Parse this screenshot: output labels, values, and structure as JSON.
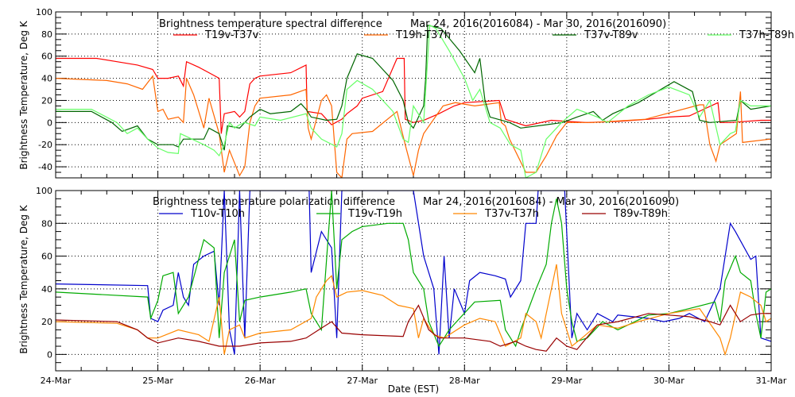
{
  "chart_data": [
    {
      "type": "line",
      "title": "Brightness temperature spectral difference",
      "date_range": "Mar 24, 2016(2016084) - Mar 30, 2016(2016090)",
      "xlabel": "",
      "ylabel": "Brightness Temperature, Deg K",
      "xlim": [
        0,
        7
      ],
      "ylim": [
        -50,
        100
      ],
      "yticks": [
        -40,
        -20,
        0,
        20,
        40,
        60,
        80,
        100
      ],
      "grid": true,
      "legend_position": "top",
      "series": [
        {
          "name": "T19v-T37v",
          "color": "#ff0000",
          "x": [
            0,
            0.4,
            0.6,
            0.8,
            0.95,
            1.0,
            1.1,
            1.2,
            1.25,
            1.28,
            1.4,
            1.5,
            1.6,
            1.62,
            1.65,
            1.75,
            1.8,
            1.85,
            1.9,
            1.95,
            2.0,
            2.3,
            2.45,
            2.46,
            2.6,
            2.7,
            2.8,
            2.85,
            2.95,
            3.0,
            3.2,
            3.34,
            3.41,
            3.42,
            3.5,
            3.6,
            3.75,
            3.9,
            4.0,
            4.34,
            4.4,
            4.6,
            4.85,
            5.0,
            5.2,
            5.5,
            5.8,
            6.0,
            6.2,
            6.48,
            6.5,
            6.6,
            6.9,
            7.0
          ],
          "y": [
            58,
            58,
            55,
            52,
            48,
            40,
            40,
            42,
            33,
            55,
            50,
            45,
            40,
            -10,
            8,
            10,
            5,
            10,
            35,
            40,
            42,
            45,
            52,
            10,
            8,
            -2,
            3,
            8,
            15,
            22,
            28,
            58,
            58,
            3,
            0,
            2,
            8,
            15,
            18,
            20,
            3,
            -3,
            2,
            1,
            0,
            1,
            3,
            5,
            6,
            18,
            0,
            0,
            2,
            2
          ]
        },
        {
          "name": "T19h-T37h",
          "color": "#ff6600",
          "x": [
            0,
            0.5,
            0.7,
            0.85,
            0.95,
            1.0,
            1.05,
            1.1,
            1.2,
            1.25,
            1.28,
            1.35,
            1.45,
            1.5,
            1.6,
            1.65,
            1.7,
            1.8,
            1.85,
            1.9,
            1.95,
            2.0,
            2.3,
            2.45,
            2.47,
            2.5,
            2.6,
            2.65,
            2.7,
            2.75,
            2.8,
            2.85,
            2.9,
            3.1,
            3.34,
            3.42,
            3.5,
            3.55,
            3.6,
            3.79,
            3.91,
            4.1,
            4.34,
            4.36,
            4.4,
            4.44,
            4.6,
            4.7,
            4.8,
            4.9,
            5.0,
            5.25,
            5.77,
            6.3,
            6.34,
            6.4,
            6.46,
            6.5,
            6.66,
            6.7,
            6.72,
            6.99
          ],
          "y": [
            40,
            38,
            35,
            30,
            42,
            10,
            12,
            3,
            5,
            0,
            40,
            25,
            -5,
            22,
            -10,
            -45,
            -25,
            -48,
            -40,
            0,
            15,
            22,
            25,
            30,
            -5,
            -15,
            20,
            25,
            15,
            -45,
            -50,
            -15,
            -10,
            -8,
            10,
            -20,
            -48,
            -25,
            -10,
            15,
            18,
            15,
            18,
            0,
            -3,
            -15,
            -45,
            -45,
            -30,
            -12,
            0,
            0,
            3,
            16,
            16,
            -20,
            -35,
            -20,
            -10,
            28,
            -18,
            -15
          ]
        },
        {
          "name": "T37v-T89v",
          "color": "#006600",
          "x": [
            0,
            0.35,
            0.55,
            0.65,
            0.8,
            0.9,
            1.0,
            1.15,
            1.2,
            1.25,
            1.45,
            1.5,
            1.6,
            1.65,
            1.68,
            1.8,
            1.9,
            2.0,
            2.1,
            2.3,
            2.4,
            2.45,
            2.5,
            2.65,
            2.75,
            2.8,
            2.85,
            2.95,
            3.1,
            3.3,
            3.4,
            3.45,
            3.5,
            3.6,
            3.62,
            3.64,
            3.77,
            3.95,
            4.1,
            4.15,
            4.2,
            4.25,
            4.44,
            4.55,
            4.8,
            4.96,
            5.1,
            5.26,
            5.35,
            5.45,
            5.7,
            6.05,
            6.23,
            6.3,
            6.4,
            6.66,
            6.7,
            6.8,
            7.0
          ],
          "y": [
            10,
            10,
            0,
            -8,
            -3,
            -15,
            -20,
            -20,
            -22,
            -15,
            -15,
            -5,
            -10,
            -25,
            -3,
            -5,
            5,
            12,
            8,
            10,
            17,
            12,
            5,
            2,
            3,
            15,
            40,
            62,
            58,
            38,
            20,
            0,
            -5,
            15,
            40,
            88,
            85,
            65,
            45,
            58,
            20,
            5,
            0,
            -5,
            -2,
            0,
            5,
            10,
            2,
            8,
            18,
            37,
            28,
            2,
            0,
            2,
            20,
            12,
            15
          ]
        },
        {
          "name": "T37h-T89h",
          "color": "#66ff66",
          "x": [
            0,
            0.35,
            0.6,
            0.7,
            0.8,
            0.9,
            1.0,
            1.1,
            1.2,
            1.22,
            1.45,
            1.55,
            1.6,
            1.65,
            1.7,
            1.75,
            1.8,
            1.85,
            1.95,
            2.0,
            2.2,
            2.45,
            2.5,
            2.6,
            2.75,
            2.8,
            2.85,
            2.95,
            3.1,
            3.3,
            3.4,
            3.45,
            3.5,
            3.6,
            3.66,
            3.72,
            3.85,
            4.0,
            4.08,
            4.15,
            4.25,
            4.35,
            4.45,
            4.55,
            4.6,
            4.7,
            4.8,
            4.85,
            4.95,
            5.1,
            5.3,
            5.4,
            5.6,
            5.8,
            6.0,
            6.2,
            6.3,
            6.4,
            6.5,
            6.6,
            6.65,
            6.7,
            6.8,
            7.0
          ],
          "y": [
            12,
            12,
            0,
            -10,
            -5,
            -15,
            -23,
            -27,
            -28,
            -10,
            -20,
            -25,
            -30,
            -20,
            0,
            -5,
            -2,
            0,
            -3,
            5,
            2,
            8,
            -5,
            -15,
            -22,
            -10,
            30,
            38,
            30,
            10,
            -15,
            -18,
            15,
            0,
            88,
            85,
            65,
            40,
            20,
            30,
            0,
            -5,
            -20,
            -25,
            -50,
            -45,
            -15,
            -10,
            0,
            12,
            5,
            0,
            15,
            25,
            32,
            25,
            5,
            20,
            -20,
            -10,
            -8,
            20,
            15,
            15
          ]
        }
      ],
      "x_tick_labels": []
    },
    {
      "type": "line",
      "title": "Brightness temperature polarization difference",
      "date_range": "Mar 24, 2016(2016084) - Mar 30, 2016(2016090)",
      "xlabel": "Date (EST)",
      "ylabel": "Brightness Temperature, Deg K",
      "xlim": [
        0,
        7
      ],
      "ylim": [
        -10,
        100
      ],
      "yticks": [
        0,
        20,
        40,
        60,
        80,
        100
      ],
      "x_tick_labels": [
        "24-Mar",
        "25-Mar",
        "26-Mar",
        "27-Mar",
        "28-Mar",
        "29-Mar",
        "30-Mar",
        "31-Mar"
      ],
      "grid": true,
      "legend_position": "top",
      "series": [
        {
          "name": "T10v-T10h",
          "color": "#0000cc",
          "x": [
            0,
            0.9,
            0.93,
            1.0,
            1.05,
            1.15,
            1.2,
            1.25,
            1.3,
            1.35,
            1.45,
            1.55,
            1.6,
            1.65,
            1.7,
            1.75,
            1.8,
            1.85,
            1.9,
            2.48,
            2.5,
            2.6,
            2.7,
            2.75,
            2.8,
            3.5,
            3.6,
            3.7,
            3.75,
            3.8,
            3.85,
            3.9,
            4.0,
            4.05,
            4.15,
            4.3,
            4.4,
            4.45,
            4.55,
            4.6,
            4.7,
            4.72,
            4.98,
            5.05,
            5.1,
            5.2,
            5.3,
            5.45,
            5.5,
            5.8,
            5.95,
            6.1,
            6.2,
            6.35,
            6.5,
            6.6,
            6.65,
            6.8,
            6.85,
            6.9,
            7.0
          ],
          "y": [
            43,
            42,
            22,
            20,
            27,
            30,
            50,
            35,
            30,
            55,
            60,
            63,
            30,
            100,
            15,
            0,
            100,
            10,
            100,
            100,
            50,
            75,
            65,
            10,
            100,
            100,
            60,
            40,
            0,
            60,
            10,
            40,
            25,
            45,
            50,
            48,
            46,
            35,
            45,
            80,
            80,
            100,
            100,
            10,
            25,
            15,
            25,
            20,
            24,
            22,
            20,
            22,
            25,
            20,
            40,
            80,
            75,
            58,
            60,
            10,
            8
          ]
        },
        {
          "name": "T19v-T19h",
          "color": "#00aa00",
          "x": [
            0,
            0.9,
            0.93,
            1.0,
            1.05,
            1.15,
            1.2,
            1.3,
            1.45,
            1.55,
            1.6,
            1.65,
            1.7,
            1.75,
            1.8,
            1.85,
            2.0,
            2.3,
            2.45,
            2.5,
            2.6,
            2.7,
            2.75,
            2.8,
            2.9,
            3.0,
            3.25,
            3.4,
            3.45,
            3.5,
            3.6,
            3.65,
            3.75,
            3.8,
            3.85,
            4.1,
            4.35,
            4.4,
            4.5,
            4.55,
            4.7,
            4.8,
            4.85,
            4.9,
            4.95,
            5.0,
            5.05,
            5.1,
            5.2,
            5.35,
            5.5,
            5.8,
            6.0,
            6.2,
            6.45,
            6.5,
            6.55,
            6.65,
            6.7,
            6.8,
            6.85,
            6.9,
            6.95,
            7.0
          ],
          "y": [
            38,
            35,
            22,
            33,
            48,
            50,
            25,
            35,
            70,
            65,
            10,
            50,
            60,
            70,
            20,
            33,
            35,
            38,
            40,
            25,
            15,
            100,
            40,
            70,
            75,
            78,
            80,
            80,
            70,
            50,
            40,
            20,
            5,
            10,
            15,
            32,
            33,
            15,
            5,
            15,
            40,
            55,
            80,
            95,
            80,
            40,
            20,
            8,
            10,
            20,
            15,
            24,
            25,
            28,
            32,
            20,
            45,
            60,
            50,
            45,
            25,
            10,
            38,
            40
          ]
        },
        {
          "name": "T37v-T37h",
          "color": "#ff8800",
          "x": [
            0,
            0.6,
            0.7,
            0.8,
            0.9,
            1.0,
            1.2,
            1.4,
            1.5,
            1.6,
            1.65,
            1.7,
            1.8,
            1.85,
            2.0,
            2.3,
            2.5,
            2.55,
            2.65,
            2.7,
            2.75,
            2.85,
            3.0,
            3.2,
            3.35,
            3.5,
            3.55,
            3.6,
            3.7,
            3.8,
            4.0,
            4.15,
            4.3,
            4.4,
            4.55,
            4.6,
            4.7,
            4.75,
            4.85,
            4.9,
            4.95,
            5.05,
            5.15,
            5.3,
            5.5,
            5.7,
            6.0,
            6.3,
            6.5,
            6.55,
            6.6,
            6.7,
            6.8,
            6.9,
            6.95,
            7.0
          ],
          "y": [
            20,
            19,
            17,
            15,
            10,
            10,
            15,
            12,
            8,
            35,
            0,
            15,
            18,
            10,
            13,
            15,
            22,
            35,
            45,
            48,
            35,
            38,
            39,
            36,
            30,
            28,
            10,
            22,
            12,
            10,
            18,
            22,
            20,
            5,
            10,
            25,
            20,
            10,
            40,
            55,
            25,
            5,
            10,
            18,
            16,
            20,
            25,
            28,
            10,
            0,
            10,
            38,
            35,
            30,
            20,
            22
          ]
        },
        {
          "name": "T89v-T89h",
          "color": "#990000",
          "x": [
            0,
            0.6,
            0.8,
            0.9,
            1.0,
            1.2,
            1.4,
            1.6,
            1.8,
            2.0,
            2.3,
            2.45,
            2.6,
            2.7,
            2.8,
            3.0,
            3.4,
            3.45,
            3.55,
            3.65,
            3.75,
            4.0,
            4.25,
            4.35,
            4.5,
            4.6,
            4.7,
            4.8,
            4.9,
            5.0,
            5.1,
            5.3,
            5.5,
            5.8,
            6.0,
            6.2,
            6.4,
            6.5,
            6.6,
            6.7,
            6.8,
            6.9,
            7.0
          ],
          "y": [
            21,
            20,
            15,
            10,
            7,
            10,
            8,
            5,
            5,
            7,
            8,
            10,
            16,
            20,
            13,
            12,
            11,
            20,
            30,
            15,
            10,
            10,
            8,
            5,
            8,
            5,
            3,
            2,
            10,
            5,
            3,
            18,
            20,
            25,
            24,
            23,
            20,
            18,
            30,
            20,
            24,
            25,
            25
          ]
        }
      ]
    }
  ]
}
